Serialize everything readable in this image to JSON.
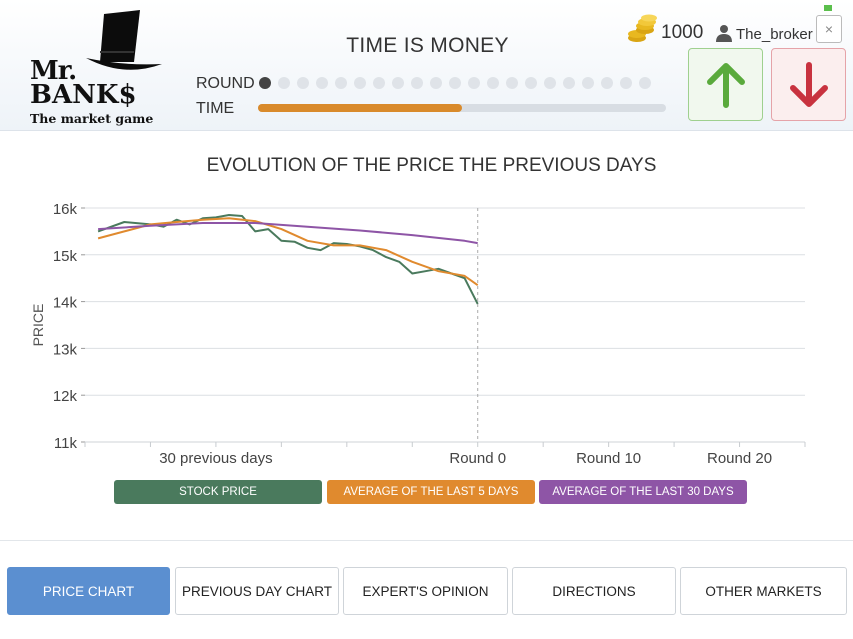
{
  "logo": {
    "line1": "Mr.",
    "line2": "BANK$",
    "tagline": "The market game"
  },
  "header": {
    "title": "TIME IS MONEY",
    "round_label": "ROUND",
    "time_label": "TIME",
    "rounds_total": 21,
    "current_round": 1,
    "time_progress": 0.5
  },
  "user": {
    "coins": "1000",
    "username": "The_broker",
    "coin_icon": "coins-icon",
    "user_icon": "user-icon"
  },
  "controls": {
    "close": "×",
    "up_icon": "arrow-up-icon",
    "down_icon": "arrow-down-icon",
    "up_color": "#5aaa3c",
    "down_color": "#c8323f"
  },
  "chart_title": "EVOLUTION OF THE PRICE THE PREVIOUS DAYS",
  "chart_data": {
    "type": "line",
    "title": "EVOLUTION OF THE PRICE THE PREVIOUS DAYS",
    "ylabel": "PRICE",
    "xlabel": "",
    "ylim": [
      11000,
      16000
    ],
    "xlim": [
      -30,
      25
    ],
    "yticks": [
      {
        "value": 16000,
        "label": "16k"
      },
      {
        "value": 15000,
        "label": "15k"
      },
      {
        "value": 14000,
        "label": "14k"
      },
      {
        "value": 13000,
        "label": "13k"
      },
      {
        "value": 12000,
        "label": "12k"
      },
      {
        "value": 11000,
        "label": "11k"
      }
    ],
    "xticks": [
      {
        "value": -20,
        "label": "30 previous days"
      },
      {
        "value": 0,
        "label": "Round 0"
      },
      {
        "value": 10,
        "label": "Round 10"
      },
      {
        "value": 20,
        "label": "Round 20"
      }
    ],
    "current_marker_x": 0,
    "grid": true,
    "series": [
      {
        "name": "STOCK PRICE",
        "color": "#4a7a5d",
        "x": [
          -29,
          -27,
          -25,
          -24,
          -23,
          -22,
          -21,
          -20,
          -19,
          -18,
          -17,
          -16,
          -15,
          -14,
          -13,
          -12,
          -11,
          -10,
          -9,
          -8,
          -7,
          -6,
          -5,
          -4,
          -3,
          -2,
          -1,
          0
        ],
        "values": [
          15500,
          15700,
          15650,
          15600,
          15750,
          15650,
          15780,
          15800,
          15850,
          15830,
          15500,
          15550,
          15300,
          15280,
          15150,
          15100,
          15250,
          15230,
          15180,
          15100,
          14950,
          14850,
          14600,
          14650,
          14700,
          14600,
          14500,
          13950
        ]
      },
      {
        "name": "AVERAGE OF THE LAST 5 DAYS",
        "color": "#e08a2e",
        "x": [
          -29,
          -27,
          -25,
          -23,
          -21,
          -19,
          -17,
          -15,
          -13,
          -11,
          -9,
          -7,
          -5,
          -3,
          -1,
          0
        ],
        "values": [
          15350,
          15500,
          15650,
          15700,
          15750,
          15780,
          15720,
          15550,
          15300,
          15200,
          15200,
          15100,
          14850,
          14650,
          14550,
          14350
        ]
      },
      {
        "name": "AVERAGE OF THE LAST 30 DAYS",
        "color": "#8e55a6",
        "x": [
          -29,
          -25,
          -21,
          -17,
          -13,
          -9,
          -5,
          -1,
          0
        ],
        "values": [
          15550,
          15620,
          15680,
          15680,
          15600,
          15520,
          15420,
          15300,
          15250
        ]
      }
    ]
  },
  "legend": [
    "STOCK PRICE",
    "AVERAGE OF THE LAST 5 DAYS",
    "AVERAGE OF THE LAST 30 DAYS"
  ],
  "tabs": [
    "PRICE CHART",
    "PREVIOUS DAY CHART",
    "EXPERT'S OPINION",
    "DIRECTIONS",
    "OTHER MARKETS"
  ],
  "active_tab": 0
}
